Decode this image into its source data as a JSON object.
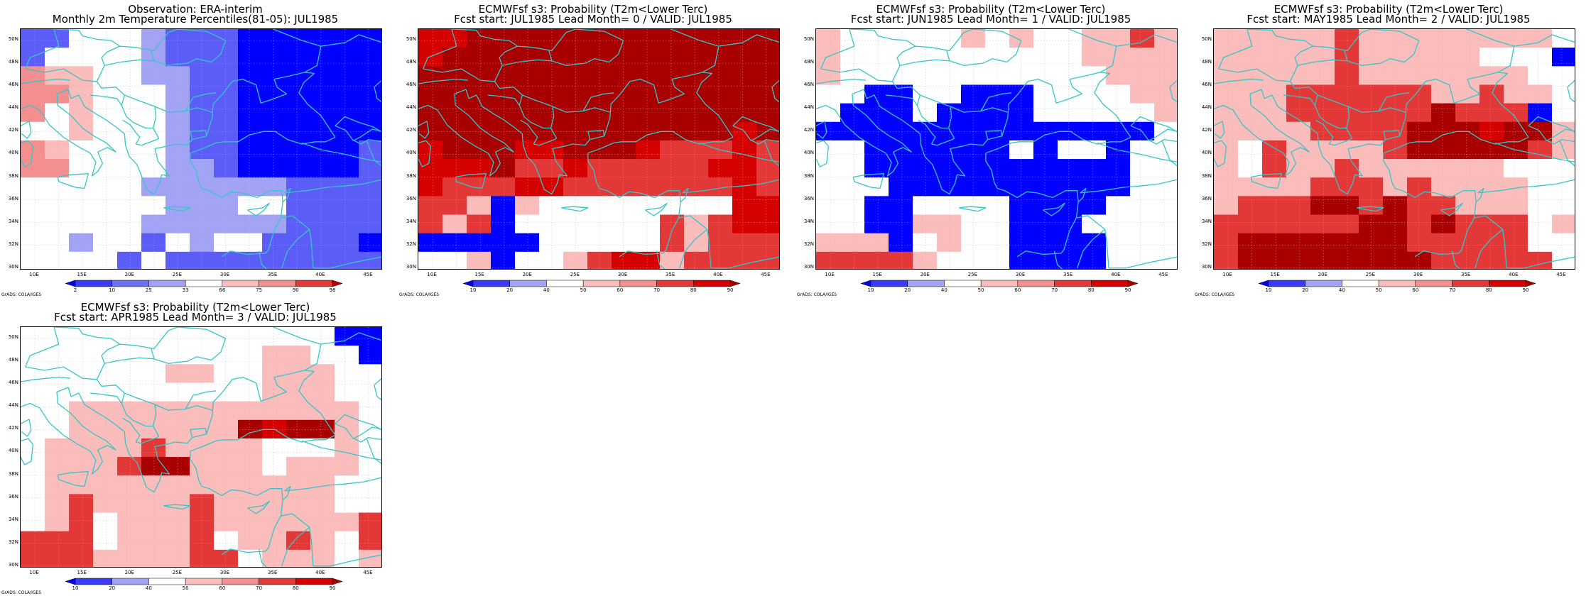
{
  "credit": "GrADS: COLA/IGES",
  "lon_labels": [
    "10E",
    "15E",
    "20E",
    "25E",
    "30E",
    "35E",
    "40E",
    "45E"
  ],
  "lat_labels": [
    "50N",
    "48N",
    "46N",
    "44N",
    "42N",
    "40N",
    "38N",
    "36N",
    "34N",
    "32N",
    "30N"
  ],
  "colors": {
    "land_line": "#34c6c8",
    "grid_line": "#b8b8b8",
    "blue_dark": "#0000ff",
    "blue_mid": "#5c5cf6",
    "blue_light": "#a3a3f5",
    "white": "#ffffff",
    "pink_light": "#fbbcbc",
    "pink_mid": "#f38f8f",
    "red": "#e23838",
    "red_strong": "#d50000",
    "red_dark": "#a80000"
  },
  "panels": [
    {
      "id": "obs",
      "title_line1": "Observation: ERA-interim",
      "title_line2": "Monthly 2m Temperature Percentiles(81-05): JUL1985",
      "colorbar_labels": [
        "2",
        "10",
        "25",
        "33",
        "66",
        "75",
        "90",
        "98"
      ],
      "colorbar_colors": [
        "#0000ff",
        "#3a3af7",
        "#7070f3",
        "#a3a3f5",
        "#ffffff",
        "#fbbcbc",
        "#f38f8f",
        "#e23838",
        "#c00000"
      ],
      "grid": [
        "33WWWC333DDDDDD",
        "2WWWWC333DDDDDD",
        "566WWCC33DDDDDD",
        "556WWWC33DDDDDD",
        "5W6WWWC33DDDDDD",
        "WW6WWWC33DDDDDD",
        "56WWWWC33DDDDD3",
        "55WWWWCC3DDDDD3",
        "WWWWWCCCCCC3333",
        "WWWWWWCCCWW3333",
        "WWWWWCCCCCC3333",
        "WWCWW3WCWW3333D",
        "WWWW3W333333333"
      ]
    },
    {
      "id": "lead0",
      "title_line1": "ECMWFsf s3: Probability (T2m<Lower Terc)",
      "title_line2": "Fcst start: JUL1985   Lead Month= 0 / VALID: JUL1985",
      "colorbar_labels": [
        "10",
        "20",
        "40",
        "50",
        "60",
        "70",
        "80",
        "90"
      ],
      "colorbar_colors": [
        "#0000ff",
        "#3a3af7",
        "#a3a3f5",
        "#ffffff",
        "#fbbcbc",
        "#f38f8f",
        "#e23838",
        "#d50000",
        "#a80000"
      ],
      "grid": [
        "ssrrrrrrrrrrrrr",
        "srrrrrrrrrrrrrr",
        "rrrrrrrrrrrrrrr",
        "rrrrrrrrrrrrrrr",
        "rrrrrrrrrrrrrrr",
        "rrrrrrrrrrrrrsr",
        "srrrssrrrsqqqsq",
        "sssrqqsqqqqqssq",
        "sqqqssqqqqqqqsq",
        "qqpbpWWWWWWWWss",
        "qpqbWWWWWWqpqss",
        "bbbbbWWWWWqpqqq",
        "WWpbWWpqsspqqqq"
      ]
    },
    {
      "id": "lead1",
      "title_line1": "ECMWFsf s3: Probability (T2m<Lower Terc)",
      "title_line2": "Fcst start: JUN1985   Lead Month= 1 / VALID: JUL1985",
      "colorbar_labels": [
        "10",
        "20",
        "40",
        "50",
        "60",
        "70",
        "80",
        "90"
      ],
      "colorbar_colors": [
        "#0000ff",
        "#3a3af7",
        "#a3a3f5",
        "#ffffff",
        "#fbbcbc",
        "#f38f8f",
        "#e23838",
        "#d50000",
        "#a80000"
      ],
      "grid": [
        "pWWWWWpWpWWppqp",
        "pWWWWWWWWWWpppp",
        "pWWWWWWWWWWWppp",
        "WWDDWWDDDWWWWpp",
        "WDDDWDDDDWWWWWp",
        "DDDDDDDDDDDDDDW",
        "WWDDDDDDWDWWDWW",
        "WWDDDDDDDDDDDWW",
        "WWWDDDDDDDDDDWW",
        "WWDDWWWWDDDDWWW",
        "WWDDppWWDDDWWWW",
        "pppDWpWWDDDDWWW",
        "qqqqpWWWDDDDWWW"
      ]
    },
    {
      "id": "lead2",
      "title_line1": "ECMWFsf s3: Probability (T2m<Lower Terc)",
      "title_line2": "Fcst start: MAY1985   Lead Month= 2 / VALID: JUL1985",
      "colorbar_labels": [
        "10",
        "20",
        "40",
        "50",
        "60",
        "70",
        "80",
        "90"
      ],
      "colorbar_colors": [
        "#0000ff",
        "#3a3af7",
        "#a3a3f5",
        "#ffffff",
        "#fbbcbc",
        "#f38f8f",
        "#e23838",
        "#d50000",
        "#a80000"
      ],
      "grid": [
        "pppppqppppppppW",
        "pppppqpppppWWWD",
        "pppppqpppppppWW",
        "pppqqqqqqppqppW",
        "pppqqqqqqrqqqDW",
        "ppppqqqqrrrsrrp",
        "pWqppppqrrrrrqp",
        "pWqppqppppppWWW",
        "ppppqqqpqppppWW",
        "pqqqrrqrqqpppWW",
        "qqqqqqrrqrqqqWp",
        "qrrrrrrrqqqqqWW",
        "qrrrrrrrrqqqqqW"
      ]
    },
    {
      "id": "lead3",
      "title_line1": "ECMWFsf s3: Probability (T2m<Lower Terc)",
      "title_line2": "Fcst start: APR1985   Lead Month= 3 / VALID: JUL1985",
      "colorbar_labels": [
        "10",
        "20",
        "40",
        "50",
        "60",
        "70",
        "80",
        "90"
      ],
      "colorbar_colors": [
        "#0000ff",
        "#3a3af7",
        "#a3a3f5",
        "#ffffff",
        "#fbbcbc",
        "#f38f8f",
        "#e23838",
        "#d50000",
        "#a80000"
      ],
      "grid": [
        "WWWWWWWWWWWWWDD",
        "WWWWWWWWWWppWWD",
        "WWWWWWppWWpppWW",
        "WWWWWWWWWWpppWW",
        "WWppppppppppppW",
        "WWppppppprsrrpW",
        "WppppqppppWWWpW",
        "WpppqrrpppWpppW",
        "WppppppppppppWW",
        "WpqppppqpppppWW",
        "WpqWpppqppppppq",
        "qqqWpppqWppqpWq",
        "qqqppppqqWpppWp"
      ]
    }
  ]
}
